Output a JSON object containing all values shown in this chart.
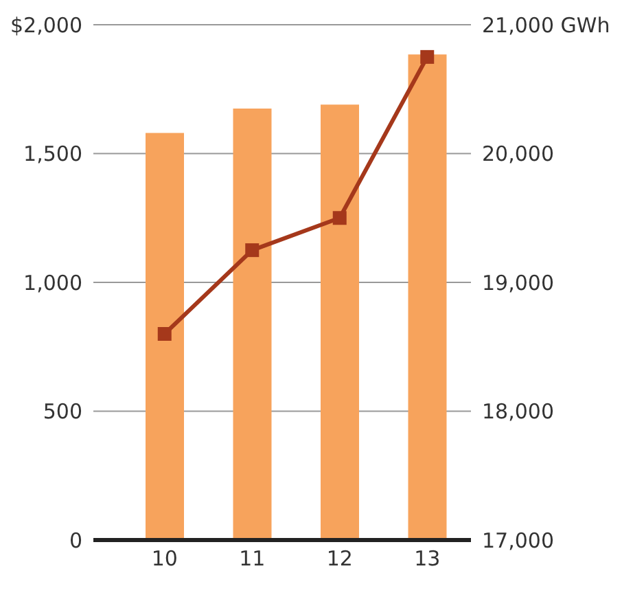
{
  "chart_data": {
    "type": "bar",
    "categories": [
      "10",
      "11",
      "12",
      "13"
    ],
    "series": [
      {
        "color": "#f7a35c",
        "values": [
          1580,
          1675,
          1690,
          1885
        ]
      },
      {
        "type": "line",
        "axis": "y2",
        "color": "#a5381b",
        "values": [
          18600,
          19250,
          19500,
          20750
        ]
      }
    ],
    "ylim": [
      0,
      2000
    ],
    "yticks": [
      0,
      500,
      {
        "value": 1000,
        "label": "1,000"
      },
      {
        "value": 1500,
        "label": "1,500"
      },
      {
        "value": 2000,
        "label": "$2,000"
      }
    ],
    "y2lim": [
      17000,
      21000
    ],
    "y2ticks": [
      {
        "value": 17000,
        "label": "17,000"
      },
      {
        "value": 18000,
        "label": "18,000"
      },
      {
        "value": 19000,
        "label": "19,000"
      },
      {
        "value": 20000,
        "label": "20,000"
      },
      {
        "value": 21000,
        "label": "21,000 GWh"
      }
    ],
    "grid": "y",
    "marker": "square"
  }
}
